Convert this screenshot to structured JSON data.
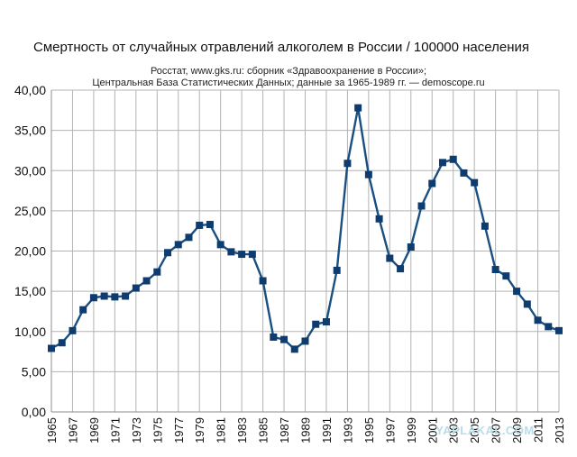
{
  "chart_data": {
    "type": "line",
    "title": "Смертность от случайных отравлений алкоголем в России / 100000 населения",
    "subtitle_lines": [
      "Росстат, www.gks.ru: сборник «Здравоохранение в России»;",
      "Центральная База Статистических Данных;  данные за 1965-1989 гг. — demoscope.ru"
    ],
    "xlabel": "",
    "ylabel": "",
    "ylim": [
      0,
      40
    ],
    "y_ticks": [
      "0,00",
      "5,00",
      "10,00",
      "15,00",
      "20,00",
      "25,00",
      "30,00",
      "35,00",
      "40,00"
    ],
    "x_ticks": [
      "1965",
      "1967",
      "1969",
      "1971",
      "1973",
      "1975",
      "1977",
      "1979",
      "1981",
      "1983",
      "1985",
      "1987",
      "1989",
      "1991",
      "1993",
      "1995",
      "1997",
      "1999",
      "2001",
      "2003",
      "2005",
      "2007",
      "2009",
      "2011",
      "2013"
    ],
    "grid": true,
    "legend": "none",
    "line_color": "#1a4f82",
    "marker_color": "#0f3c6e",
    "x": [
      1965,
      1966,
      1967,
      1968,
      1969,
      1970,
      1971,
      1972,
      1973,
      1974,
      1975,
      1976,
      1977,
      1978,
      1979,
      1980,
      1981,
      1982,
      1983,
      1984,
      1985,
      1986,
      1987,
      1988,
      1989,
      1990,
      1991,
      1992,
      1993,
      1994,
      1995,
      1996,
      1997,
      1998,
      1999,
      2000,
      2001,
      2002,
      2003,
      2004,
      2005,
      2006,
      2007,
      2008,
      2009,
      2010,
      2011,
      2012,
      2013
    ],
    "values": [
      7.9,
      8.6,
      10.1,
      12.7,
      14.2,
      14.4,
      14.3,
      14.4,
      15.4,
      16.3,
      17.4,
      19.8,
      20.8,
      21.7,
      23.2,
      23.3,
      20.8,
      19.9,
      19.6,
      19.6,
      16.3,
      9.3,
      9.0,
      7.8,
      8.8,
      10.9,
      11.2,
      17.6,
      30.9,
      37.8,
      29.5,
      24.0,
      19.1,
      17.8,
      20.5,
      25.6,
      28.4,
      31.0,
      31.4,
      29.7,
      28.5,
      23.1,
      17.7,
      16.9,
      15.0,
      13.4,
      11.4,
      10.6,
      10.1
    ]
  },
  "watermark": "YAPLAKAL.COM"
}
